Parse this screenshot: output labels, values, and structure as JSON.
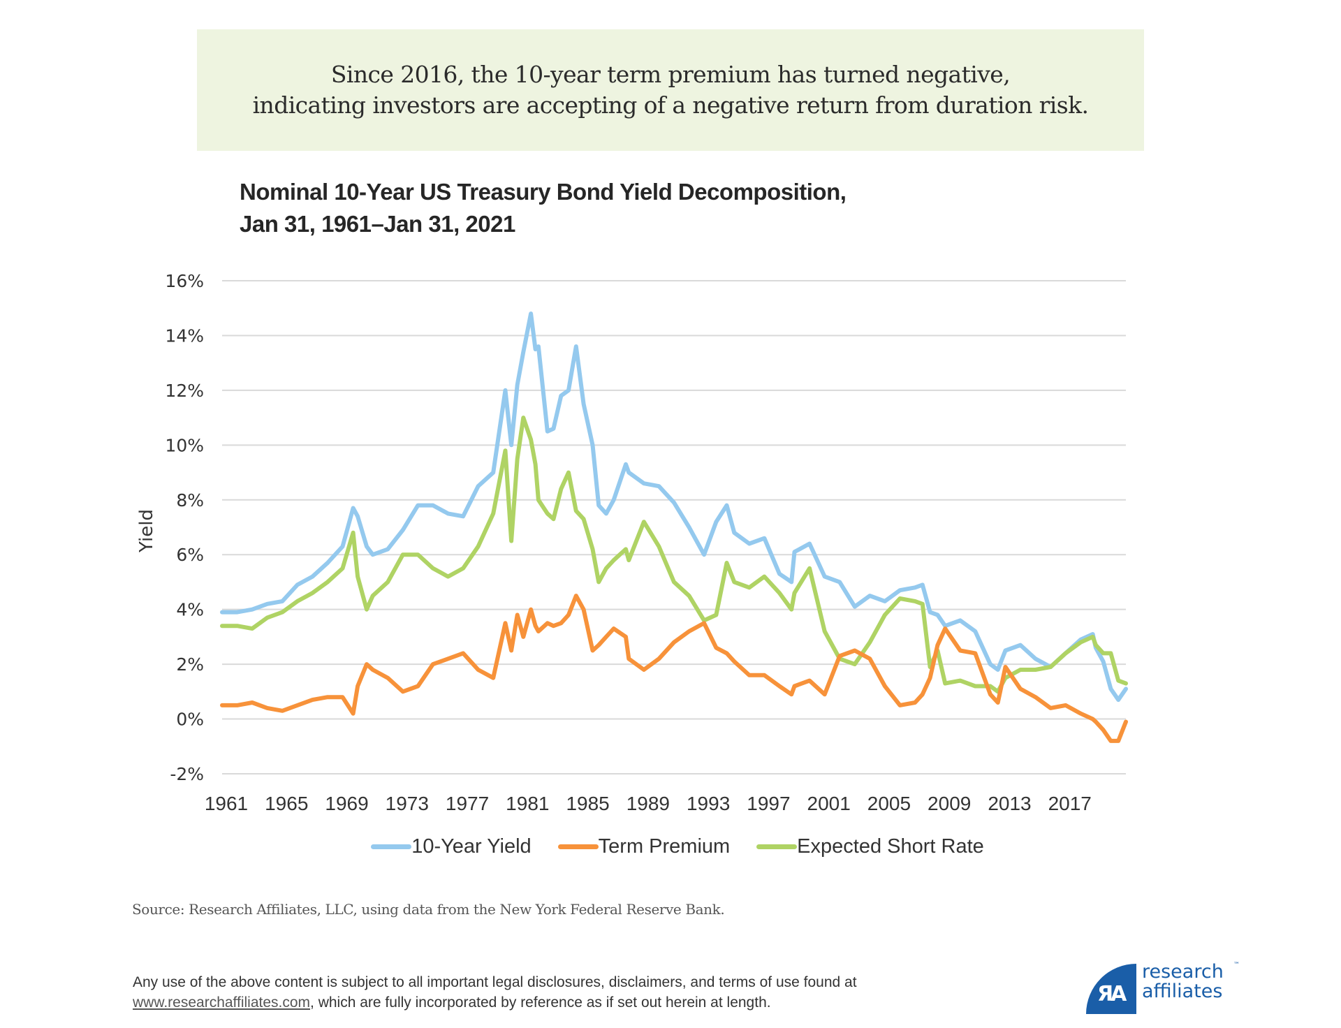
{
  "banner": {
    "line1": "Since 2016, the 10-year term premium has turned negative,",
    "line2": "indicating investors are accepting of a negative return from duration risk."
  },
  "chart_title": {
    "line1": "Nominal 10-Year US Treasury Bond Yield Decomposition,",
    "line2": "Jan 31, 1961–Jan 31, 2021"
  },
  "source": "Source: Research Affiliates, LLC, using data from the New York Federal Reserve Bank.",
  "disclaimer": {
    "line1": "Any use of the above content is subject to all important legal disclosures, disclaimers, and terms of use found at",
    "link": "www.researchaffiliates.com",
    "line2_rest": ",  which are fully incorporated by reference as if set out herein at length."
  },
  "logo": {
    "glyph": "ЯA",
    "line1": "research",
    "line2": "affiliates",
    "tm": "™"
  },
  "colors": {
    "ten_year_yield": "#94c9ee",
    "term_premium": "#f7923a",
    "expected_short_rate": "#afd364",
    "grid": "#d9d9d9"
  },
  "chart_data": {
    "type": "line",
    "title": "Nominal 10-Year US Treasury Bond Yield Decomposition, Jan 31, 1961–Jan 31, 2021",
    "xlabel": "",
    "ylabel": "Yield",
    "ylim": [
      -2,
      16
    ],
    "xlim": [
      1961,
      2021
    ],
    "yticks": [
      -2,
      0,
      2,
      4,
      6,
      8,
      10,
      12,
      14,
      16
    ],
    "ytick_labels": [
      "-2%",
      "0%",
      "2%",
      "4%",
      "6%",
      "8%",
      "10%",
      "12%",
      "14%",
      "16%"
    ],
    "xticks": [
      1961,
      1965,
      1969,
      1973,
      1977,
      1981,
      1985,
      1989,
      1993,
      1997,
      2001,
      2005,
      2009,
      2013,
      2017
    ],
    "xtick_labels": [
      "1961",
      "1965",
      "1969",
      "1973",
      "1977",
      "1981",
      "1985",
      "1989",
      "1993",
      "1997",
      "2001",
      "2005",
      "2009",
      "2013",
      "2017"
    ],
    "grid": true,
    "legend": "bottom",
    "x": [
      1961,
      1962,
      1963,
      1964,
      1965,
      1966,
      1967,
      1968,
      1969,
      1969.7,
      1970,
      1970.6,
      1971,
      1972,
      1973,
      1974,
      1975,
      1976,
      1977,
      1978,
      1979,
      1979.8,
      1980.2,
      1980.6,
      1981,
      1981.5,
      1981.8,
      1982,
      1982.6,
      1983,
      1983.5,
      1984,
      1984.5,
      1985,
      1985.6,
      1986,
      1986.5,
      1987,
      1987.8,
      1988,
      1989,
      1990,
      1991,
      1992,
      1993,
      1993.8,
      1994.5,
      1995,
      1996,
      1997,
      1998,
      1998.8,
      1999,
      2000,
      2001,
      2002,
      2003,
      2004,
      2005,
      2006,
      2007,
      2007.5,
      2008,
      2008.5,
      2009,
      2010,
      2011,
      2012,
      2012.5,
      2013,
      2014,
      2015,
      2016,
      2017,
      2018,
      2018.8,
      2019,
      2019.5,
      2020,
      2020.5,
      2021
    ],
    "series": [
      {
        "name": "10-Year Yield",
        "values": [
          3.9,
          3.9,
          4.0,
          4.2,
          4.3,
          4.9,
          5.2,
          5.7,
          6.3,
          7.7,
          7.4,
          6.3,
          6.0,
          6.2,
          6.9,
          7.8,
          7.8,
          7.5,
          7.4,
          8.5,
          9.0,
          12.0,
          10.0,
          12.2,
          13.4,
          14.8,
          13.5,
          13.6,
          10.5,
          10.6,
          11.8,
          12.0,
          13.6,
          11.5,
          10.0,
          7.8,
          7.5,
          8.0,
          9.3,
          9.0,
          8.6,
          8.5,
          7.9,
          7.0,
          6.0,
          7.2,
          7.8,
          6.8,
          6.4,
          6.6,
          5.3,
          5.0,
          6.1,
          6.4,
          5.2,
          5.0,
          4.1,
          4.5,
          4.3,
          4.7,
          4.8,
          4.9,
          3.9,
          3.8,
          3.4,
          3.6,
          3.2,
          2.0,
          1.8,
          2.5,
          2.7,
          2.2,
          1.9,
          2.4,
          2.9,
          3.1,
          2.6,
          2.1,
          1.1,
          0.7,
          1.1
        ]
      },
      {
        "name": "Term Premium",
        "values": [
          0.5,
          0.5,
          0.6,
          0.4,
          0.3,
          0.5,
          0.7,
          0.8,
          0.8,
          0.2,
          1.2,
          2.0,
          1.8,
          1.5,
          1.0,
          1.2,
          2.0,
          2.2,
          2.4,
          1.8,
          1.5,
          3.5,
          2.5,
          3.8,
          3.0,
          4.0,
          3.4,
          3.2,
          3.5,
          3.4,
          3.5,
          3.8,
          4.5,
          4.0,
          2.5,
          2.7,
          3.0,
          3.3,
          3.0,
          2.2,
          1.8,
          2.2,
          2.8,
          3.2,
          3.5,
          2.6,
          2.4,
          2.1,
          1.6,
          1.6,
          1.2,
          0.9,
          1.2,
          1.4,
          0.9,
          2.3,
          2.5,
          2.2,
          1.2,
          0.5,
          0.6,
          0.9,
          1.5,
          2.7,
          3.3,
          2.5,
          2.4,
          0.9,
          0.6,
          1.9,
          1.1,
          0.8,
          0.4,
          0.5,
          0.2,
          0.0,
          -0.1,
          -0.4,
          -0.8,
          -0.8,
          -0.1
        ]
      },
      {
        "name": "Expected Short Rate",
        "values": [
          3.4,
          3.4,
          3.3,
          3.7,
          3.9,
          4.3,
          4.6,
          5.0,
          5.5,
          6.8,
          5.2,
          4.0,
          4.5,
          5.0,
          6.0,
          6.0,
          5.5,
          5.2,
          5.5,
          6.3,
          7.5,
          9.8,
          6.5,
          9.5,
          11.0,
          10.2,
          9.3,
          8.0,
          7.5,
          7.3,
          8.4,
          9.0,
          7.6,
          7.3,
          6.2,
          5.0,
          5.5,
          5.8,
          6.2,
          5.8,
          7.2,
          6.3,
          5.0,
          4.5,
          3.6,
          3.8,
          5.7,
          5.0,
          4.8,
          5.2,
          4.6,
          4.0,
          4.6,
          5.5,
          3.2,
          2.2,
          2.0,
          2.8,
          3.8,
          4.4,
          4.3,
          4.2,
          1.9,
          2.5,
          1.3,
          1.4,
          1.2,
          1.2,
          1.0,
          1.5,
          1.8,
          1.8,
          1.9,
          2.4,
          2.8,
          3.0,
          2.7,
          2.4,
          2.4,
          1.4,
          1.3
        ]
      }
    ]
  }
}
